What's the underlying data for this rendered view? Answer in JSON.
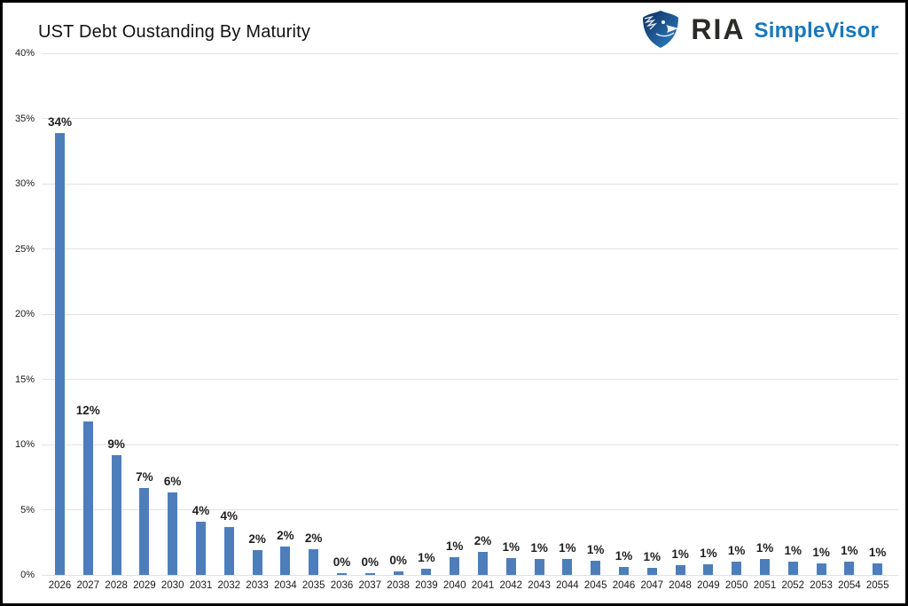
{
  "header": {
    "title": "UST Debt Oustanding By Maturity",
    "logo": {
      "icon": "eagle-shield-icon",
      "ria_text": "RIA",
      "simplevisor_text": "SimpleVisor",
      "ria_color": "#2b2a29",
      "simplevisor_color": "#1578be"
    }
  },
  "chart_data": {
    "type": "bar",
    "title": "UST Debt Oustanding By Maturity",
    "categories": [
      "2026",
      "2027",
      "2028",
      "2029",
      "2030",
      "2031",
      "2032",
      "2033",
      "2034",
      "2035",
      "2036",
      "2037",
      "2038",
      "2039",
      "2040",
      "2041",
      "2042",
      "2043",
      "2044",
      "2045",
      "2046",
      "2047",
      "2048",
      "2049",
      "2050",
      "2051",
      "2052",
      "2053",
      "2054",
      "2055"
    ],
    "values": [
      34,
      12,
      9,
      7,
      6,
      4,
      4,
      2,
      2,
      2,
      0,
      0,
      0,
      1,
      1,
      2,
      1,
      1,
      1,
      1,
      1,
      1,
      1,
      1,
      1,
      1,
      1,
      1,
      1,
      1
    ],
    "bar_labels": [
      "34%",
      "12%",
      "9%",
      "7%",
      "6%",
      "4%",
      "4%",
      "2%",
      "2%",
      "2%",
      "0%",
      "0%",
      "0%",
      "1%",
      "1%",
      "2%",
      "1%",
      "1%",
      "1%",
      "1%",
      "1%",
      "1%",
      "1%",
      "1%",
      "1%",
      "1%",
      "1%",
      "1%",
      "1%",
      "1%"
    ],
    "bar_heights_pct": [
      33.9,
      11.8,
      9.2,
      6.7,
      6.3,
      4.1,
      3.7,
      1.9,
      2.2,
      2.0,
      0.15,
      0.15,
      0.25,
      0.5,
      1.35,
      1.75,
      1.3,
      1.25,
      1.25,
      1.1,
      0.6,
      0.55,
      0.75,
      0.85,
      1.05,
      1.25,
      1.0,
      0.9,
      1.05,
      0.9
    ],
    "xlabel": "",
    "ylabel": "",
    "y_ticks": [
      "0%",
      "5%",
      "10%",
      "15%",
      "20%",
      "25%",
      "30%",
      "35%",
      "40%"
    ],
    "y_tick_values": [
      0,
      5,
      10,
      15,
      20,
      25,
      30,
      35,
      40
    ],
    "ylim": [
      0,
      40
    ],
    "grid": true,
    "legend": "none",
    "bar_color": "#4d7ebb",
    "gridline_color": "#e2e2e2"
  }
}
